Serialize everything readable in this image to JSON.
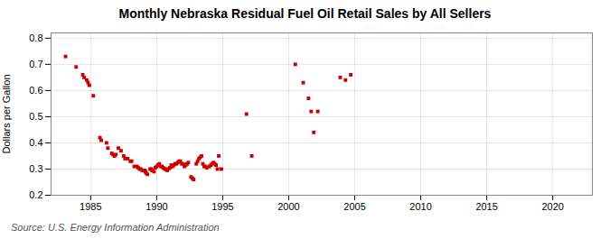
{
  "chart_data": {
    "type": "scatter",
    "title": "Monthly Nebraska Residual Fuel Oil Retail Sales by All Sellers",
    "ylabel": "Dollars per Gallon",
    "source": "Source: U.S. Energy Information Administration",
    "color": "#cc0000",
    "marker": "square",
    "grid": true,
    "xlim": [
      1982,
      2023
    ],
    "ylim": [
      0.2,
      0.82
    ],
    "xticks": [
      1985,
      1990,
      1995,
      2000,
      2005,
      2010,
      2015,
      2020
    ],
    "yticks": [
      0.2,
      0.3,
      0.4,
      0.5,
      0.6,
      0.7,
      0.8
    ],
    "x": [
      1983.1,
      1983.9,
      1984.4,
      1984.5,
      1984.7,
      1984.8,
      1984.9,
      1985.2,
      1985.7,
      1985.8,
      1986.2,
      1986.3,
      1986.6,
      1986.7,
      1986.8,
      1986.9,
      1987.1,
      1987.3,
      1987.5,
      1987.6,
      1987.8,
      1988.0,
      1988.1,
      1988.3,
      1988.5,
      1988.6,
      1988.7,
      1988.8,
      1988.9,
      1989.0,
      1989.1,
      1989.15,
      1989.2,
      1989.3,
      1989.5,
      1989.6,
      1989.65,
      1989.7,
      1989.8,
      1989.9,
      1990.0,
      1990.1,
      1990.2,
      1990.3,
      1990.4,
      1990.5,
      1990.6,
      1990.7,
      1990.8,
      1990.9,
      1991.0,
      1991.1,
      1991.15,
      1991.2,
      1991.3,
      1991.4,
      1991.5,
      1991.6,
      1991.7,
      1991.8,
      1991.9,
      1992.0,
      1992.1,
      1992.2,
      1992.3,
      1992.4,
      1992.6,
      1992.7,
      1992.8,
      1993.0,
      1993.1,
      1993.2,
      1993.3,
      1993.4,
      1993.5,
      1993.6,
      1993.7,
      1993.8,
      1994.0,
      1994.1,
      1994.2,
      1994.3,
      1994.4,
      1994.5,
      1994.6,
      1994.7,
      1994.9,
      1996.8,
      1997.2,
      2000.5,
      2001.1,
      2001.5,
      2001.7,
      2001.9,
      2002.2,
      2003.9,
      2004.3,
      2004.7
    ],
    "values": [
      0.73,
      0.69,
      0.66,
      0.65,
      0.64,
      0.63,
      0.62,
      0.58,
      0.42,
      0.41,
      0.4,
      0.38,
      0.36,
      0.355,
      0.35,
      0.355,
      0.38,
      0.37,
      0.35,
      0.34,
      0.34,
      0.33,
      0.33,
      0.31,
      0.31,
      0.305,
      0.3,
      0.3,
      0.295,
      0.295,
      0.295,
      0.29,
      0.285,
      0.28,
      0.3,
      0.3,
      0.295,
      0.295,
      0.29,
      0.305,
      0.31,
      0.315,
      0.32,
      0.31,
      0.31,
      0.305,
      0.3,
      0.3,
      0.295,
      0.3,
      0.305,
      0.315,
      0.31,
      0.31,
      0.315,
      0.32,
      0.32,
      0.325,
      0.33,
      0.33,
      0.32,
      0.32,
      0.31,
      0.315,
      0.32,
      0.325,
      0.27,
      0.265,
      0.26,
      0.32,
      0.33,
      0.34,
      0.345,
      0.35,
      0.32,
      0.31,
      0.31,
      0.305,
      0.31,
      0.315,
      0.32,
      0.325,
      0.32,
      0.315,
      0.3,
      0.35,
      0.3,
      0.51,
      0.35,
      0.7,
      0.63,
      0.57,
      0.52,
      0.44,
      0.52,
      0.65,
      0.64,
      0.66
    ]
  }
}
